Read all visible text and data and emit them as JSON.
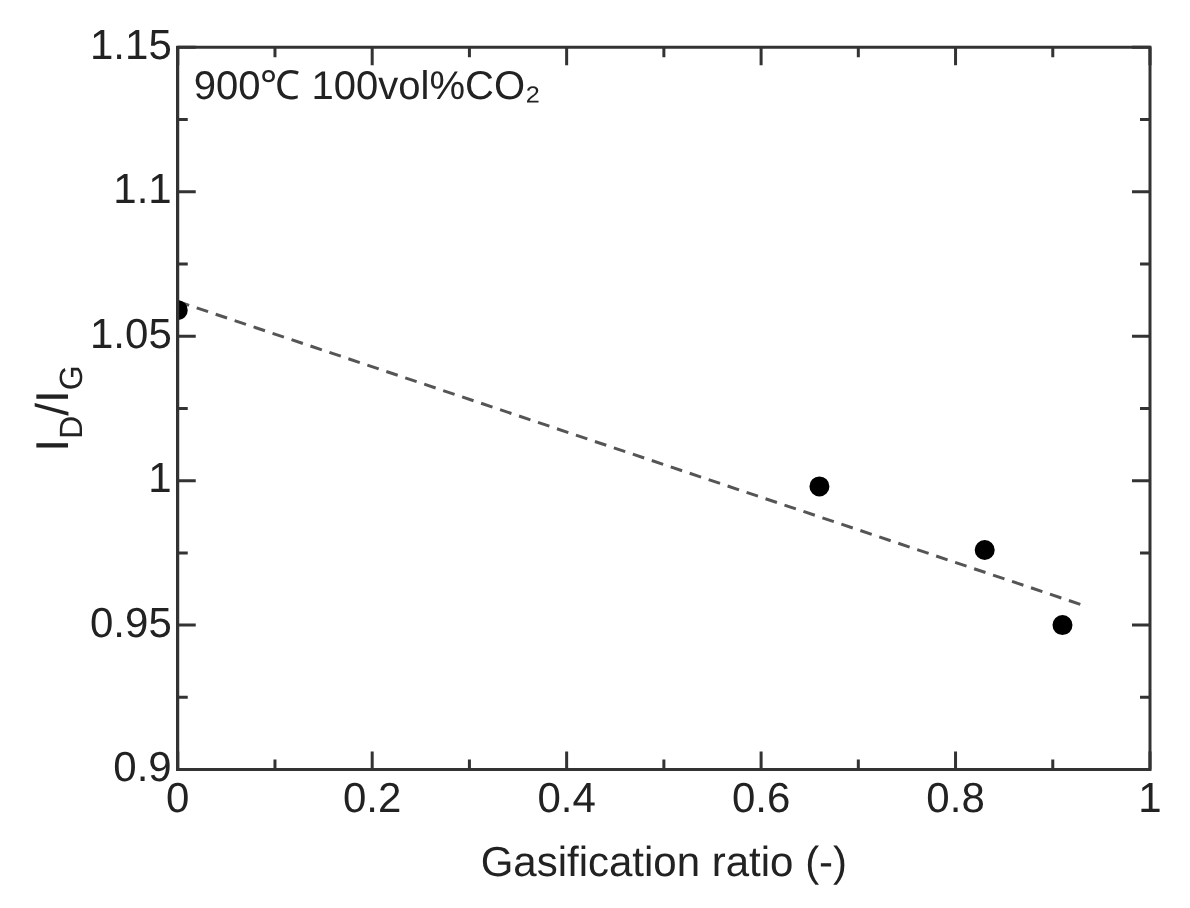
{
  "chart_data": {
    "type": "scatter",
    "xlabel": "Gasification ratio (-)",
    "ylabel": "I$_{D}$/I$_{G}$",
    "annotations": [
      "900℃ 100vol%CO₂"
    ],
    "xlim": [
      0,
      1
    ],
    "ylim": [
      0.9,
      1.15
    ],
    "xticks": [
      0,
      {
        "value": 0.1,
        "label": null
      },
      0.2,
      {
        "value": 0.3,
        "label": null
      },
      0.4,
      {
        "value": 0.5,
        "label": null
      },
      0.6,
      {
        "value": 0.7,
        "label": null
      },
      0.8,
      {
        "value": 0.9,
        "label": null
      },
      1
    ],
    "yticks": [
      0.9,
      {
        "value": 0.925,
        "label": null
      },
      0.95,
      {
        "value": 0.975,
        "label": null
      },
      1,
      {
        "value": 1.025,
        "label": null
      },
      1.05,
      {
        "value": 1.075,
        "label": null
      },
      1.1,
      {
        "value": 1.125,
        "label": null
      },
      1.15
    ],
    "grid": false,
    "legend": false,
    "marker": "circle",
    "series": [
      {
        "type": "scatter",
        "color": "#000000",
        "x": [
          0,
          0.66,
          0.83,
          0.91
        ],
        "values": [
          1.059,
          0.998,
          0.976,
          0.95
        ]
      },
      {
        "type": "line",
        "color": "#555555",
        "line_style": "dashed",
        "marker": "none",
        "x": [
          0,
          0.93
        ],
        "values": [
          1.062,
          0.957
        ]
      }
    ]
  }
}
